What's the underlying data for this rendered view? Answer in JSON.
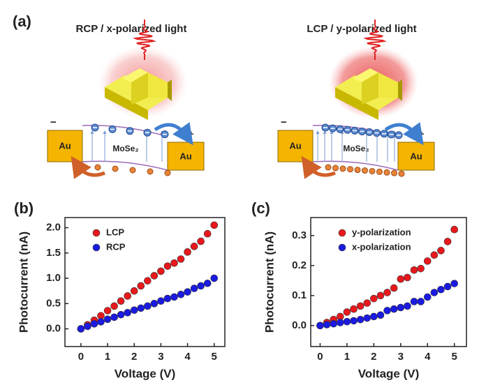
{
  "panel_a": {
    "label": "(a)",
    "sides": [
      {
        "title": "RCP / x-polarized light",
        "electrode_left": "Au",
        "electrode_right": "Au",
        "material": "MoSe₂",
        "minus": "−",
        "plus": "+"
      },
      {
        "title": "LCP / y-polarized light",
        "electrode_left": "Au",
        "electrode_right": "Au",
        "material": "MoSe₂",
        "minus": "−",
        "plus": "+"
      }
    ]
  },
  "chart_data": [
    {
      "type": "scatter",
      "label": "(b)",
      "x_label": "Voltage  (V)",
      "y_label": "Photocurrent (nA)",
      "x": [
        0,
        0.25,
        0.5,
        0.75,
        1,
        1.25,
        1.5,
        1.75,
        2,
        2.25,
        2.5,
        2.75,
        3,
        3.25,
        3.5,
        3.75,
        4,
        4.25,
        4.5,
        4.75,
        5
      ],
      "series": [
        {
          "name": "LCP",
          "color": "#e8181c",
          "values": [
            0,
            0.08,
            0.17,
            0.26,
            0.36,
            0.45,
            0.55,
            0.65,
            0.75,
            0.85,
            0.95,
            1.05,
            1.14,
            1.24,
            1.3,
            1.38,
            1.52,
            1.63,
            1.73,
            1.88,
            2.05
          ]
        },
        {
          "name": "RCP",
          "color": "#1a1ae0",
          "values": [
            0,
            0.05,
            0.1,
            0.14,
            0.19,
            0.23,
            0.28,
            0.32,
            0.37,
            0.41,
            0.45,
            0.5,
            0.55,
            0.6,
            0.63,
            0.68,
            0.73,
            0.8,
            0.85,
            0.9,
            1.0
          ]
        }
      ],
      "xlim": [
        -0.6,
        5.4
      ],
      "xticks": [
        0,
        1,
        2,
        3,
        4,
        5
      ],
      "ylim": [
        -0.35,
        2.2
      ],
      "yticks": [
        {
          "value": 0,
          "label": "0.0"
        },
        0.5,
        {
          "value": 1,
          "label": "1.0"
        },
        1.5,
        {
          "value": 2,
          "label": "2.0"
        }
      ],
      "legend": "upper left"
    },
    {
      "type": "scatter",
      "label": "(c)",
      "x_label": "Voltage  (V)",
      "y_label": "Photocurrent (nA)",
      "x": [
        0,
        0.25,
        0.5,
        0.75,
        1,
        1.25,
        1.5,
        1.75,
        2,
        2.25,
        2.5,
        2.75,
        3,
        3.25,
        3.5,
        3.75,
        4,
        4.25,
        4.5,
        4.75,
        5
      ],
      "series": [
        {
          "name": "y-polarization",
          "color": "#e8181c",
          "values": [
            0,
            0.01,
            0.02,
            0.03,
            0.045,
            0.055,
            0.065,
            0.075,
            0.09,
            0.1,
            0.11,
            0.125,
            0.155,
            0.16,
            0.185,
            0.19,
            0.215,
            0.235,
            0.25,
            0.28,
            0.32
          ]
        },
        {
          "name": "x-polarization",
          "color": "#1a1ae0",
          "values": [
            0,
            0.003,
            0.006,
            0.01,
            0.013,
            0.016,
            0.02,
            0.025,
            0.03,
            0.035,
            0.05,
            0.055,
            0.06,
            0.065,
            0.08,
            0.08,
            0.095,
            0.11,
            0.12,
            0.13,
            0.14
          ]
        }
      ],
      "xlim": [
        -0.35,
        5.45
      ],
      "xticks": [
        0,
        1,
        2,
        3,
        4,
        5
      ],
      "ylim": [
        -0.07,
        0.36
      ],
      "yticks": [
        {
          "value": 0,
          "label": "0.0"
        },
        0.1,
        0.2,
        0.3
      ],
      "legend": "upper left"
    }
  ]
}
